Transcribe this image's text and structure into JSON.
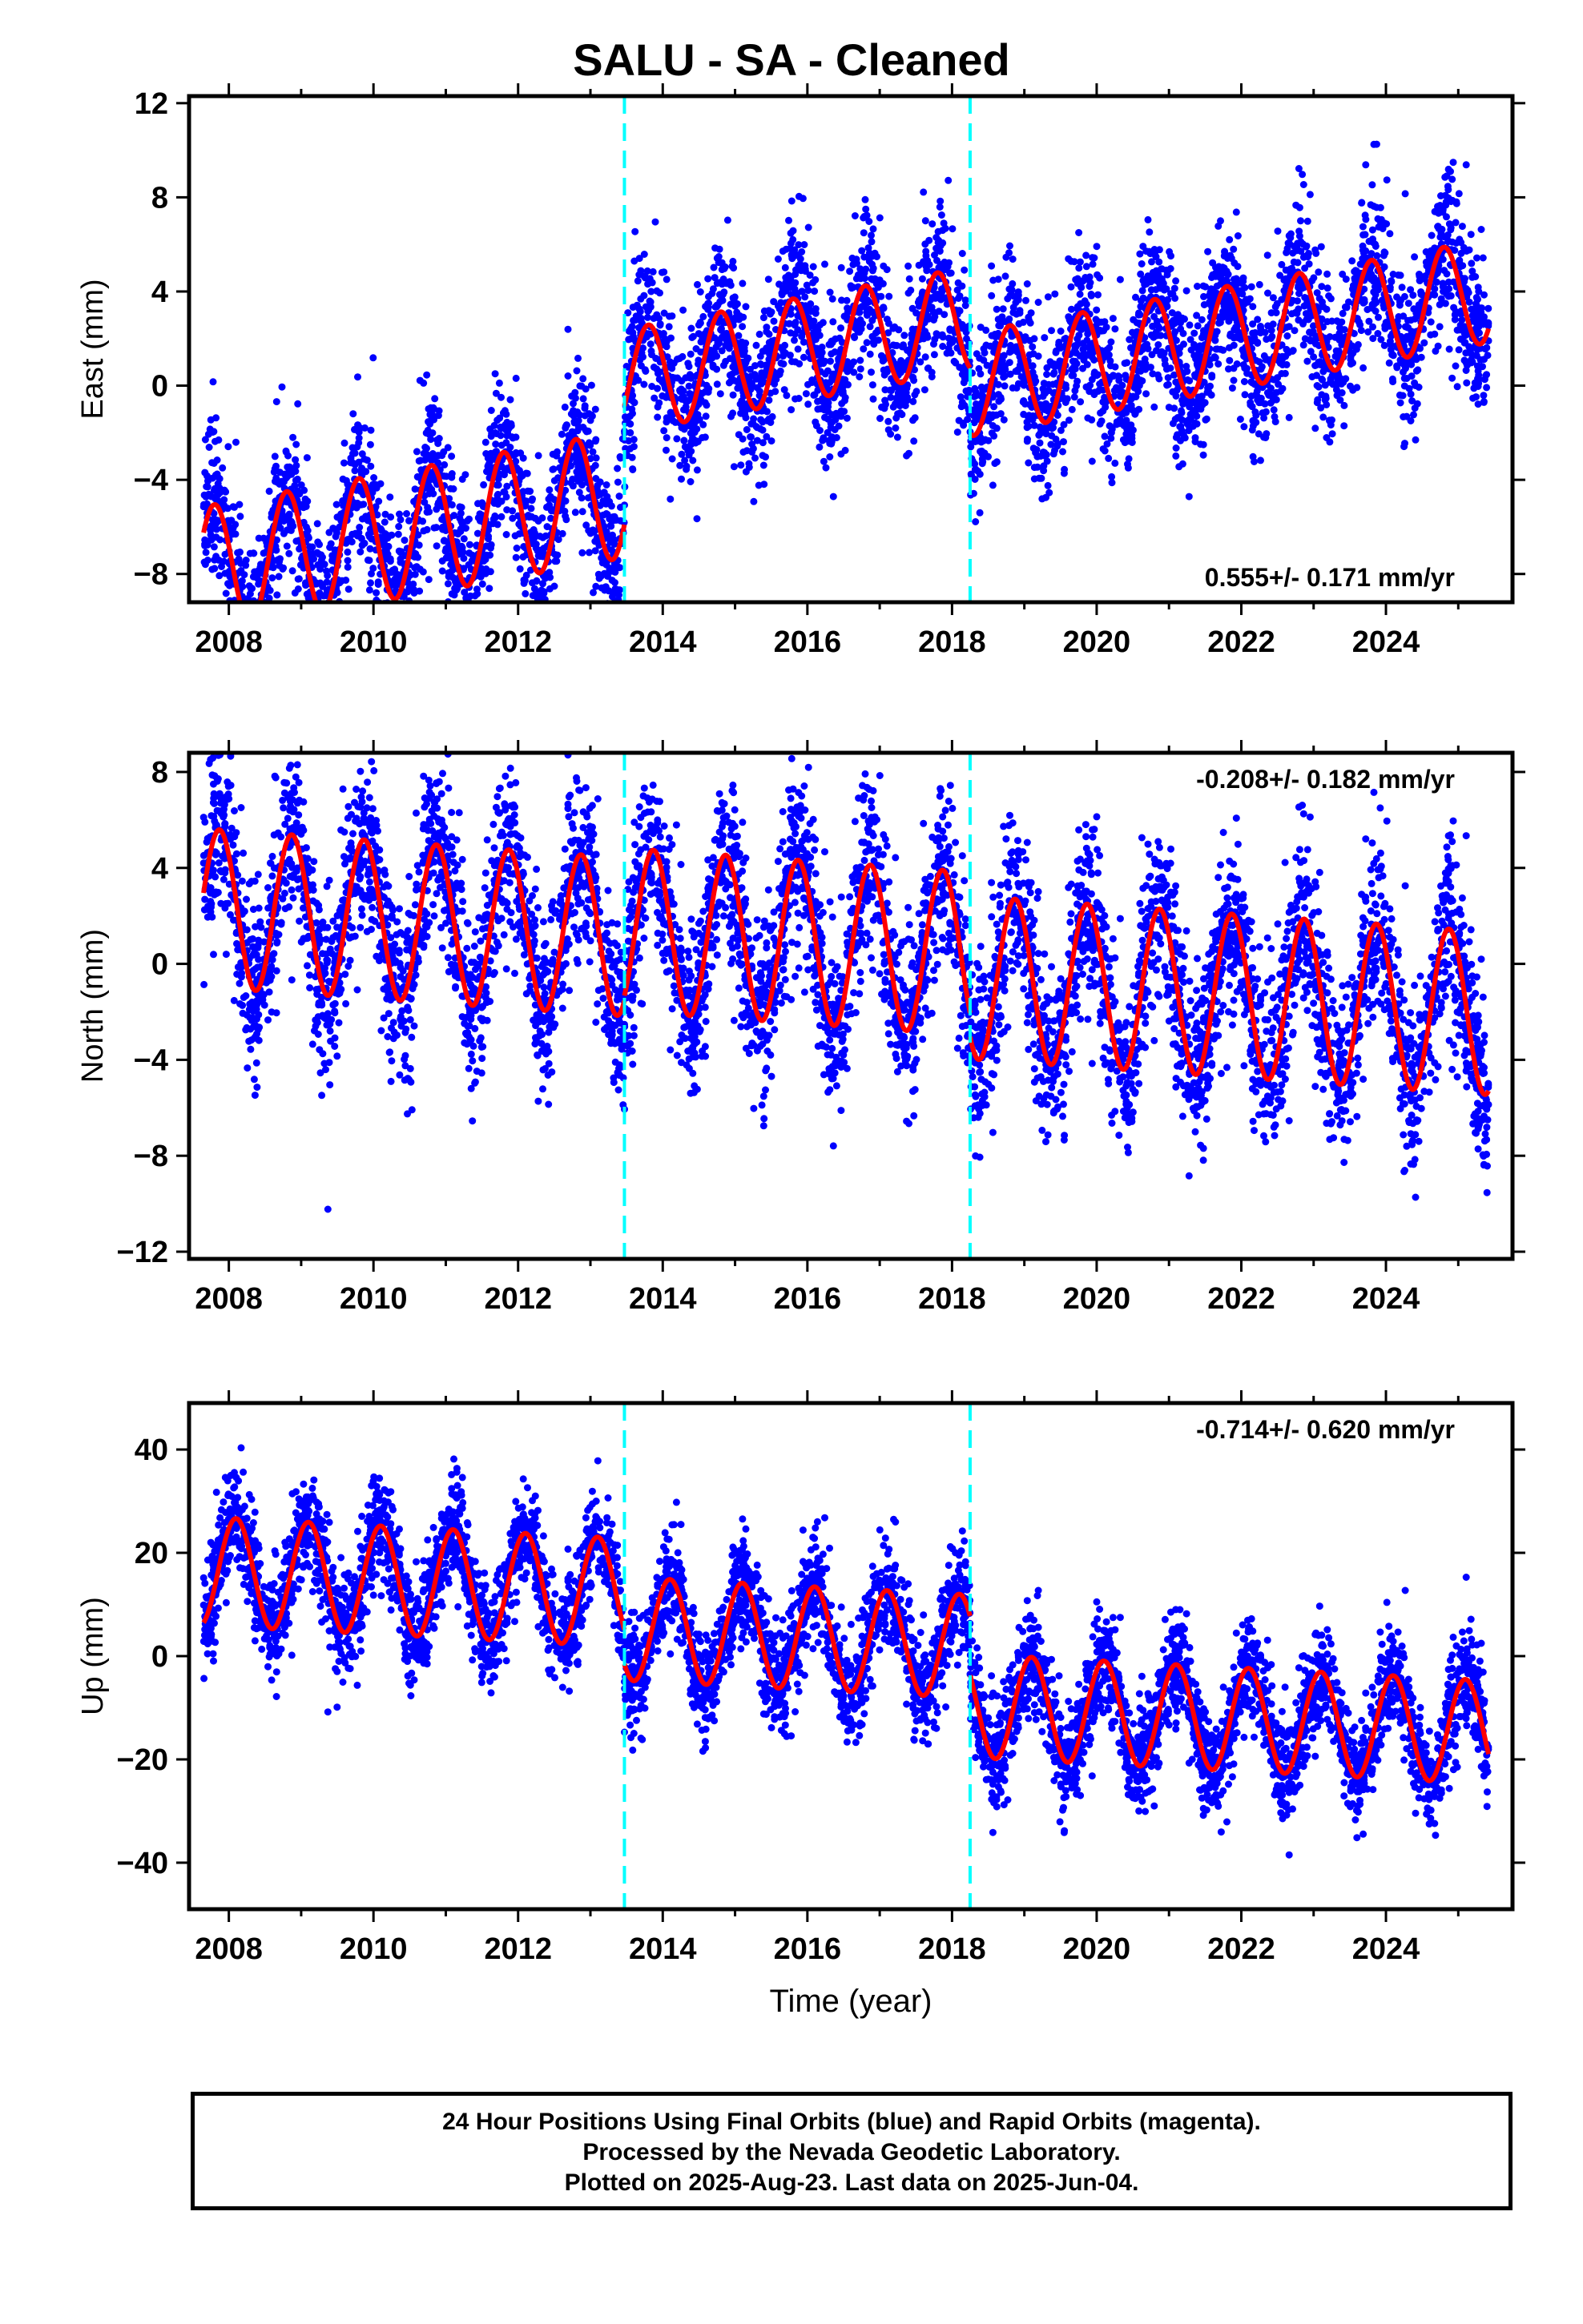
{
  "title": "SALU  - SA - Cleaned",
  "footer": {
    "line1": "24 Hour Positions Using Final Orbits (blue) and Rapid Orbits (magenta).",
    "line2": "Processed by the Nevada Geodetic Laboratory.",
    "line3": "Plotted on 2025-Aug-23. Last data on 2025-Jun-04."
  },
  "colors": {
    "points": "#0000ff",
    "fit": "#ff0000",
    "breaks": "#00ffff"
  },
  "chart_data": [
    {
      "type": "scatter",
      "component": "east",
      "ylabel": "East (mm)",
      "xlabel": "",
      "xlim": [
        2007.45,
        2025.75
      ],
      "ylim": [
        -9.2,
        12.3
      ],
      "xticks": [
        2008,
        2010,
        2012,
        2014,
        2016,
        2018,
        2020,
        2022,
        2024
      ],
      "yticks": [
        -8,
        -4,
        0,
        4,
        8,
        12
      ],
      "rate_label": "0.555+/- 0.171 mm/yr",
      "rate_position": "bottom-right",
      "breaks": [
        2013.47,
        2018.25
      ],
      "fit_segments": [
        {
          "x0": 2007.65,
          "x1": 2013.47,
          "offset": -3.2,
          "rate": 0.555,
          "annual_amp": 2.7,
          "phase": 2008.55
        },
        {
          "x0": 2013.47,
          "x1": 2018.25,
          "offset": 1.6,
          "rate": 0.555,
          "annual_amp": 2.2,
          "phase": 2008.55
        },
        {
          "x0": 2018.25,
          "x1": 2025.42,
          "offset": -1.2,
          "rate": 0.555,
          "annual_amp": 2.2,
          "phase": 2008.55
        }
      ],
      "scatter_sigma": 1.6,
      "n_points": 5600
    },
    {
      "type": "scatter",
      "component": "north",
      "ylabel": "North (mm)",
      "xlabel": "",
      "xlim": [
        2007.45,
        2025.75
      ],
      "ylim": [
        -12.3,
        8.8
      ],
      "xticks": [
        2008,
        2010,
        2012,
        2014,
        2016,
        2018,
        2020,
        2022,
        2024
      ],
      "yticks": [
        -12,
        -8,
        -4,
        0,
        4,
        8
      ],
      "rate_label": "-0.208+/- 0.182 mm/yr",
      "rate_position": "top-right",
      "breaks": [
        2013.47,
        2018.25
      ],
      "fit_segments": [
        {
          "x0": 2007.65,
          "x1": 2013.47,
          "offset": 0.6,
          "rate": -0.208,
          "annual_amp": 3.3,
          "phase": 2008.62
        },
        {
          "x0": 2013.47,
          "x1": 2018.25,
          "offset": 0.9,
          "rate": -0.208,
          "annual_amp": 3.4,
          "phase": 2008.62
        },
        {
          "x0": 2018.25,
          "x1": 2025.42,
          "offset": -0.1,
          "rate": -0.208,
          "annual_amp": 3.4,
          "phase": 2008.62
        }
      ],
      "scatter_sigma": 1.8,
      "n_points": 5600
    },
    {
      "type": "scatter",
      "component": "up",
      "ylabel": "Up (mm)",
      "xlabel": "Time (year)",
      "xlim": [
        2007.45,
        2025.75
      ],
      "ylim": [
        -49,
        49
      ],
      "xticks": [
        2008,
        2010,
        2012,
        2014,
        2016,
        2018,
        2020,
        2022,
        2024
      ],
      "yticks": [
        -40,
        -20,
        0,
        20,
        40
      ],
      "rate_label": "-0.714+/- 0.620 mm/yr",
      "rate_position": "top-right",
      "breaks": [
        2013.47,
        2018.25
      ],
      "fit_segments": [
        {
          "x0": 2007.65,
          "x1": 2013.47,
          "offset": 10.5,
          "rate": -0.714,
          "annual_amp": 10.5,
          "phase": 2007.85
        },
        {
          "x0": 2013.47,
          "x1": 2018.25,
          "offset": 3.5,
          "rate": -0.714,
          "annual_amp": 10.0,
          "phase": 2007.85
        },
        {
          "x0": 2018.25,
          "x1": 2025.42,
          "offset": -8.0,
          "rate": -0.714,
          "annual_amp": 10.0,
          "phase": 2007.85
        }
      ],
      "scatter_sigma": 5.0,
      "n_points": 5600
    }
  ]
}
